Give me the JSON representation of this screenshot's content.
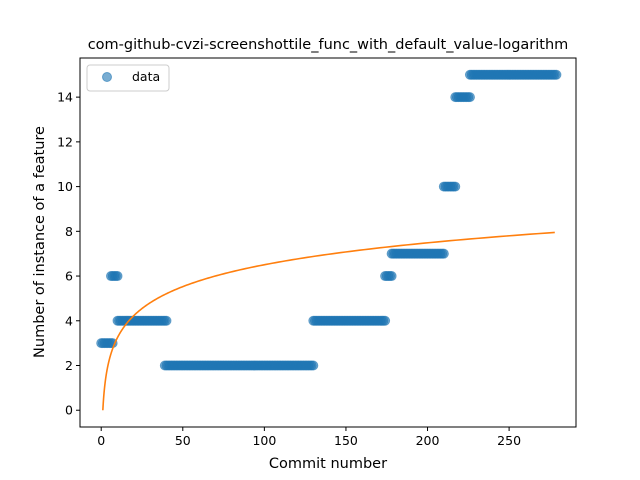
{
  "chart_data": {
    "type": "scatter",
    "title": "com-github-cvzi-screenshottile_func_with_default_value-logarithm",
    "xlabel": "Commit number",
    "ylabel": "Number of instance of a feature",
    "xlim": [
      -13,
      291
    ],
    "ylim": [
      -0.75,
      15.75
    ],
    "xticks": [
      0,
      50,
      100,
      150,
      200,
      250
    ],
    "yticks": [
      0,
      2,
      4,
      6,
      8,
      10,
      12,
      14
    ],
    "grid": false,
    "legend": {
      "position": "top-left",
      "entries": [
        "data"
      ]
    },
    "colors": {
      "scatter": "#1f77b4",
      "fit": "#ff7f0e"
    },
    "series": [
      {
        "name": "data",
        "kind": "scatter",
        "segments": [
          {
            "x_start": 0,
            "x_end": 7,
            "y": 3
          },
          {
            "x_start": 6,
            "x_end": 10,
            "y": 6
          },
          {
            "x_start": 10,
            "x_end": 40,
            "y": 4
          },
          {
            "x_start": 39,
            "x_end": 130,
            "y": 2
          },
          {
            "x_start": 130,
            "x_end": 174,
            "y": 4
          },
          {
            "x_start": 174,
            "x_end": 178,
            "y": 6
          },
          {
            "x_start": 178,
            "x_end": 210,
            "y": 7
          },
          {
            "x_start": 210,
            "x_end": 217,
            "y": 10
          },
          {
            "x_start": 217,
            "x_end": 226,
            "y": 14
          },
          {
            "x_start": 226,
            "x_end": 279,
            "y": 15
          }
        ]
      },
      {
        "kind": "line",
        "model": "logarithmic",
        "x_start": 1,
        "x_end": 278,
        "y_at_x_start": 0,
        "y_at_x_end": 7.95
      }
    ]
  }
}
